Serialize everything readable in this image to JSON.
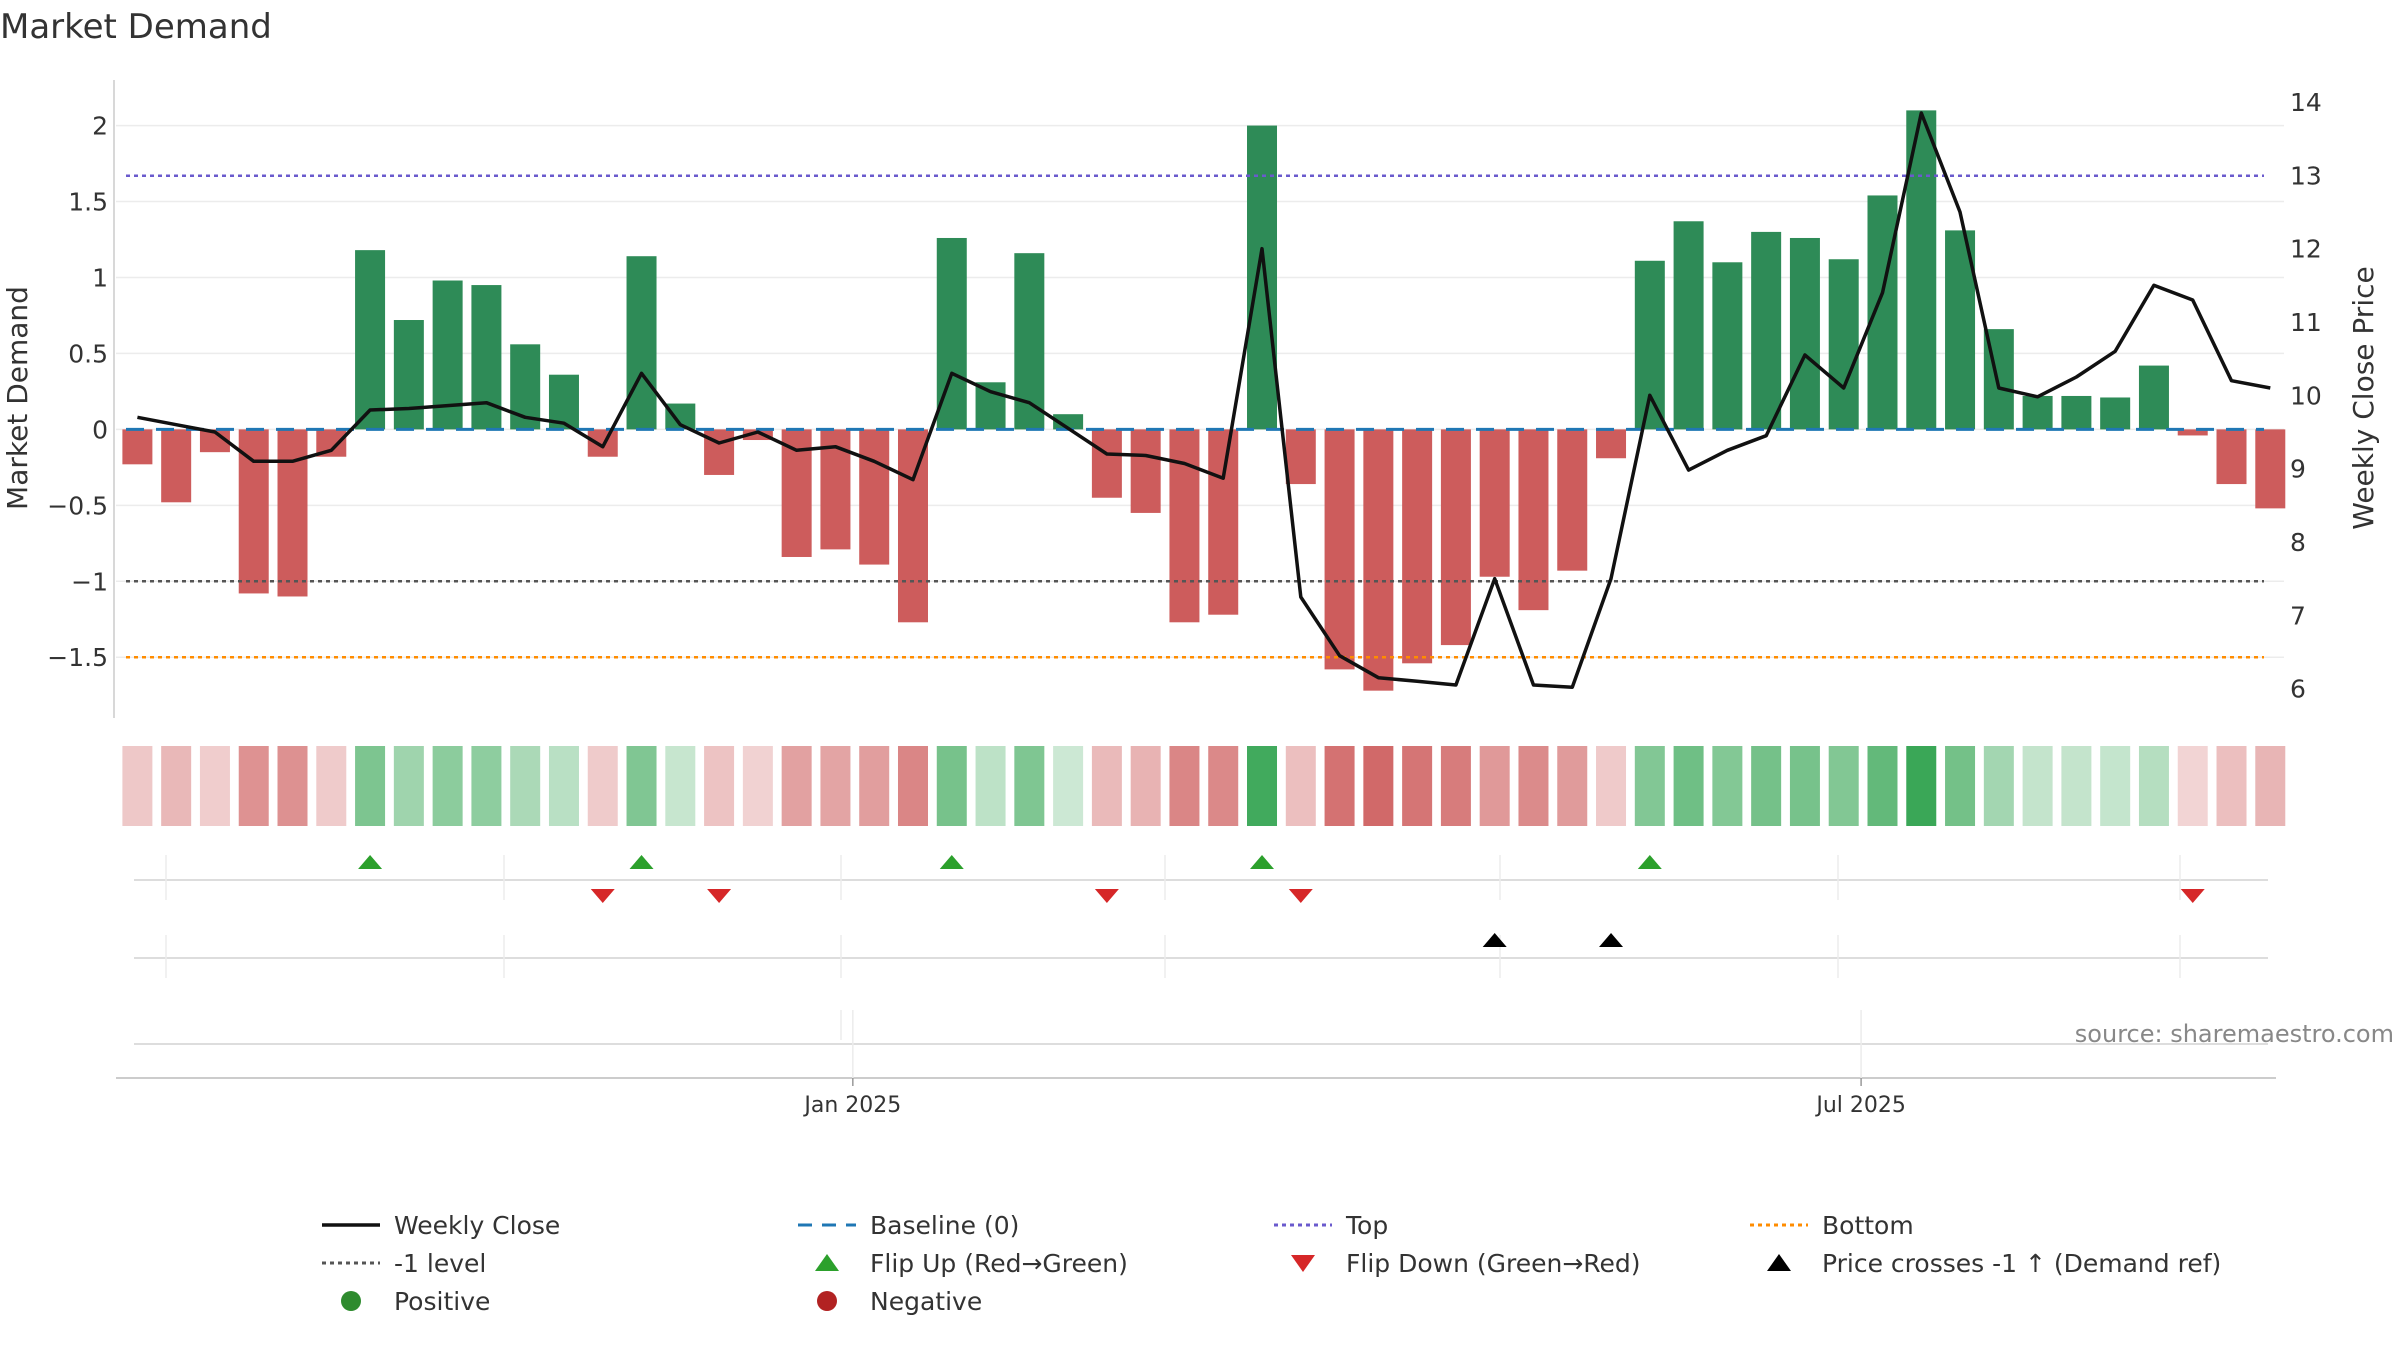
{
  "chart_data": {
    "type": "bar",
    "title": "Market Demand",
    "ylabel": "Market Demand",
    "y2label": "Weekly Close Price",
    "ylim": [
      -1.9,
      2.3
    ],
    "y2lim": [
      5.6,
      14.3
    ],
    "yticks": [
      2,
      1.5,
      1,
      0.5,
      0,
      -0.5,
      -1,
      -1.5
    ],
    "ytick_labels": [
      "2",
      "1.5",
      "1",
      "0.5",
      "0",
      "−0.5",
      "−1",
      "−1.5"
    ],
    "y2ticks": [
      14,
      13,
      12,
      11,
      10,
      9,
      8,
      7,
      6
    ],
    "x_tick_labels": [
      {
        "label": "Jan 2025",
        "after_index": 18
      },
      {
        "label": "Jul 2025",
        "after_index": 44
      }
    ],
    "levels": {
      "top": 1.67,
      "bottom": -1.5,
      "minus_one": -1,
      "baseline": 0
    },
    "colors": {
      "positive": "#2e8b57",
      "negative": "#cd5c5c",
      "weekly_close": "#111111",
      "baseline": "#1f77b4",
      "top": "#6a5acd",
      "bottom": "#ff8c00",
      "minus_one": "#555555",
      "flip_up": "#2ca02c",
      "flip_down": "#d62728",
      "price_cross": "#000000",
      "positive_dot": "#2e8b2e",
      "negative_dot": "#b22222"
    },
    "series": [
      {
        "name": "Market Demand",
        "values": [
          -0.23,
          -0.48,
          -0.15,
          -1.08,
          -1.1,
          -0.18,
          1.18,
          0.72,
          0.98,
          0.95,
          0.56,
          0.36,
          -0.18,
          1.14,
          0.17,
          -0.3,
          -0.07,
          -0.84,
          -0.79,
          -0.89,
          -1.27,
          1.26,
          0.31,
          1.16,
          0.1,
          -0.45,
          -0.55,
          -1.27,
          -1.22,
          2.0,
          -0.36,
          -1.58,
          -1.72,
          -1.54,
          -1.42,
          -0.97,
          -1.19,
          -0.93,
          -0.19,
          1.11,
          1.37,
          1.1,
          1.3,
          1.26,
          1.12,
          1.54,
          2.1,
          1.31,
          0.66,
          0.22,
          0.22,
          0.21,
          0.42,
          -0.04,
          -0.36,
          -0.52
        ]
      },
      {
        "name": "Weekly Close",
        "axis": "right",
        "values": [
          9.7,
          9.6,
          9.5,
          9.1,
          9.1,
          9.25,
          9.8,
          9.82,
          9.86,
          9.9,
          9.7,
          9.62,
          9.3,
          10.3,
          9.6,
          9.35,
          9.5,
          9.25,
          9.3,
          9.1,
          8.85,
          10.3,
          10.05,
          9.9,
          9.55,
          9.2,
          9.18,
          9.07,
          8.87,
          12.0,
          7.25,
          6.45,
          6.15,
          6.1,
          6.05,
          7.5,
          6.05,
          6.02,
          7.5,
          10.0,
          8.98,
          9.25,
          9.45,
          10.55,
          10.1,
          11.4,
          13.85,
          12.5,
          10.1,
          9.98,
          10.25,
          10.6,
          11.5,
          11.3,
          10.2,
          10.1
        ]
      }
    ],
    "flip_up_indices": [
      6,
      13,
      21,
      29,
      39
    ],
    "flip_down_indices": [
      12,
      15,
      25,
      30,
      53
    ],
    "price_cross_indices": [
      35,
      38
    ],
    "legend": {
      "placement": "bottom",
      "entries": [
        {
          "label": "Weekly Close",
          "kind": "line",
          "color": "weekly_close"
        },
        {
          "label": "Baseline (0)",
          "kind": "dash",
          "color": "baseline"
        },
        {
          "label": "Top",
          "kind": "dot",
          "color": "top"
        },
        {
          "label": "Bottom",
          "kind": "dot",
          "color": "bottom"
        },
        {
          "label": "-1 level",
          "kind": "dot",
          "color": "minus_one"
        },
        {
          "label": "Flip Up (Red→Green)",
          "kind": "tri-up",
          "color": "flip_up"
        },
        {
          "label": "Flip Down (Green→Red)",
          "kind": "tri-down",
          "color": "flip_down"
        },
        {
          "label": "Price crosses -1 ↑ (Demand ref)",
          "kind": "tri-up",
          "color": "price_cross"
        },
        {
          "label": "Positive",
          "kind": "circle",
          "color": "positive_dot"
        },
        {
          "label": "Negative",
          "kind": "circle",
          "color": "negative_dot"
        }
      ]
    },
    "source": "source: sharemaestro.com"
  }
}
